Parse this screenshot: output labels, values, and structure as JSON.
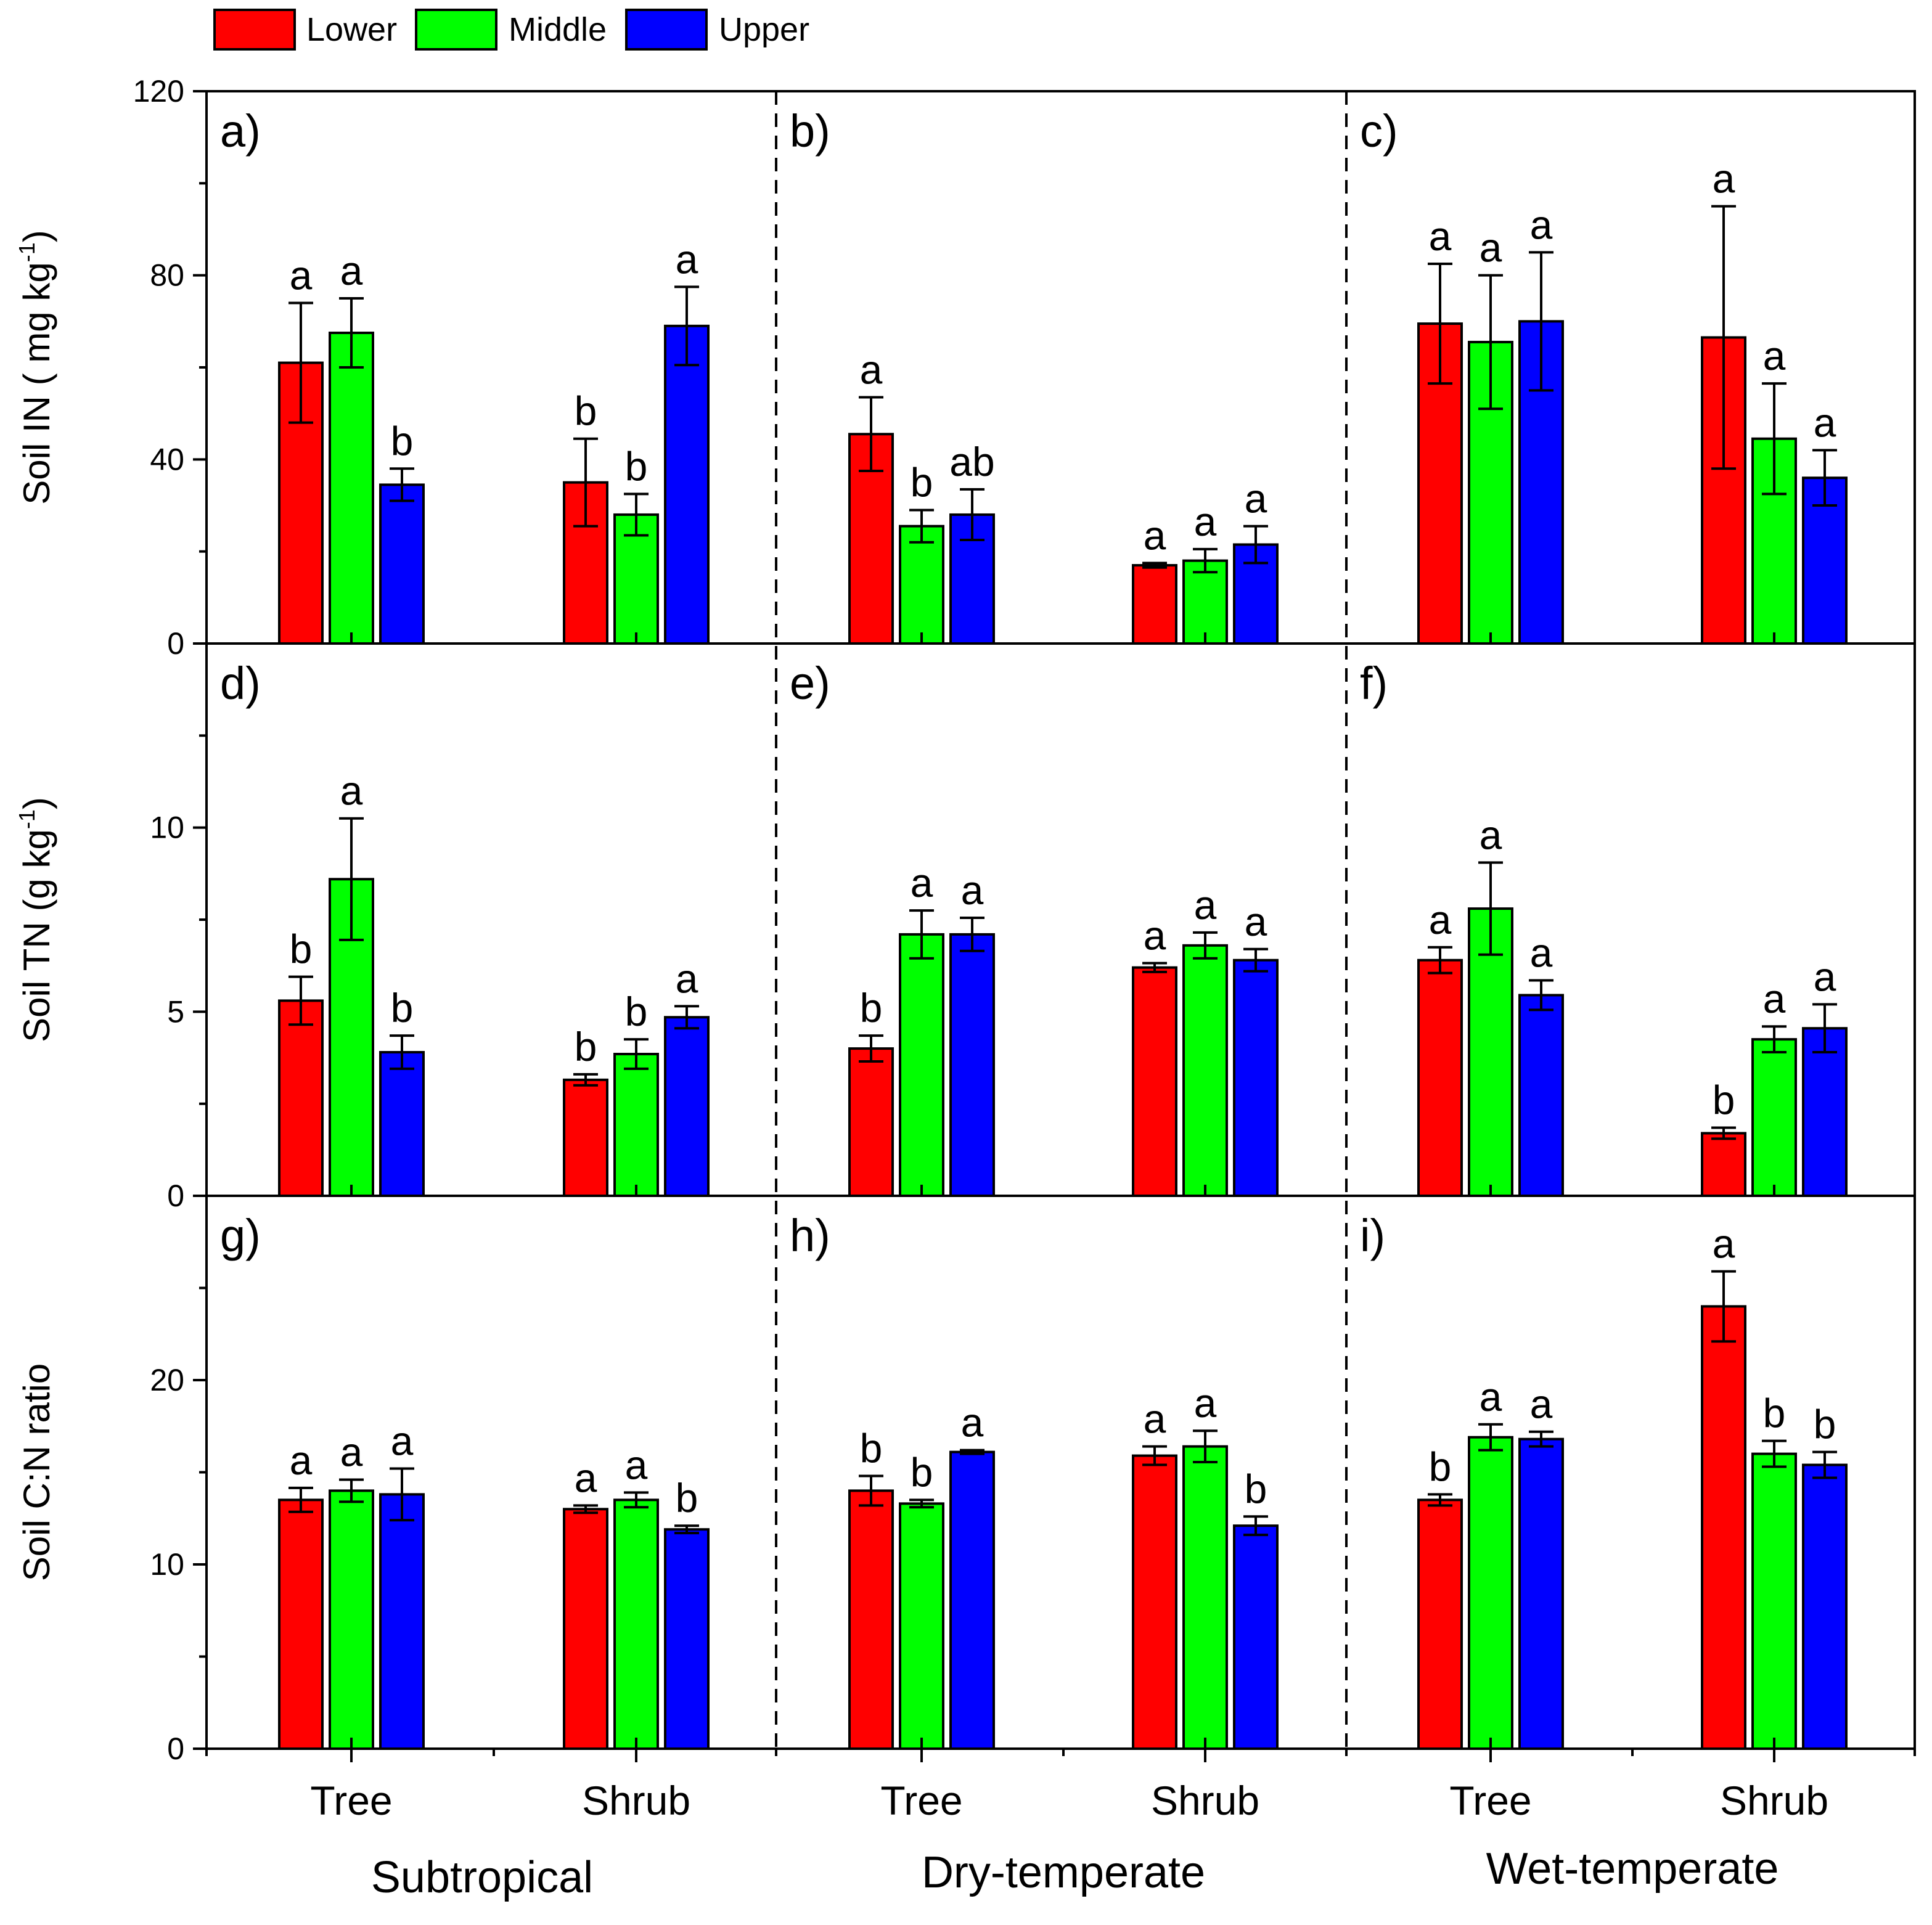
{
  "chart_data": {
    "type": "bar",
    "layout": "3x3 panel grid, climate zones as columns, soil variables as rows",
    "legend": [
      {
        "name": "Lower",
        "color": "#ff0000"
      },
      {
        "name": "Middle",
        "color": "#00ff00"
      },
      {
        "name": "Upper",
        "color": "#0000ff"
      }
    ],
    "climates": [
      "Subtropical",
      "Dry-temperate",
      "Wet-temperate"
    ],
    "groups": [
      "Tree",
      "Shrub"
    ],
    "rows": [
      {
        "ylabel_main": "Soil IN ( mg kg",
        "ylabel_sup": "-1",
        "ylabel_end": ")",
        "ylim": [
          0,
          120
        ],
        "major_ticks": [
          0,
          40,
          80,
          120
        ],
        "minor_step": 20,
        "tick_labels": [
          "0",
          "40",
          "80",
          "120"
        ],
        "panels": [
          {
            "label": "a)",
            "bars": [
              {
                "mean": 61,
                "err": 13,
                "sig": "a"
              },
              {
                "mean": 67.5,
                "err": 7.5,
                "sig": "a"
              },
              {
                "mean": 34.5,
                "err": 3.5,
                "sig": "b"
              },
              {
                "mean": 35,
                "err": 9.5,
                "sig": "b"
              },
              {
                "mean": 28,
                "err": 4.5,
                "sig": "b"
              },
              {
                "mean": 69,
                "err": 8.5,
                "sig": "a"
              }
            ]
          },
          {
            "label": "b)",
            "bars": [
              {
                "mean": 45.5,
                "err": 8,
                "sig": "a"
              },
              {
                "mean": 25.5,
                "err": 3.5,
                "sig": "b"
              },
              {
                "mean": 28,
                "err": 5.5,
                "sig": "ab"
              },
              {
                "mean": 17,
                "err": 0.5,
                "sig": "a"
              },
              {
                "mean": 18,
                "err": 2.5,
                "sig": "a"
              },
              {
                "mean": 21.5,
                "err": 4,
                "sig": "a"
              }
            ]
          },
          {
            "label": "c)",
            "bars": [
              {
                "mean": 69.5,
                "err": 13,
                "sig": "a"
              },
              {
                "mean": 65.5,
                "err": 14.5,
                "sig": "a"
              },
              {
                "mean": 70,
                "err": 15,
                "sig": "a"
              },
              {
                "mean": 66.5,
                "err": 28.5,
                "sig": "a"
              },
              {
                "mean": 44.5,
                "err": 12,
                "sig": "a"
              },
              {
                "mean": 36,
                "err": 6,
                "sig": "a"
              }
            ]
          }
        ]
      },
      {
        "ylabel_main": "Soil TN (g kg",
        "ylabel_sup": "-1",
        "ylabel_end": ")",
        "ylim": [
          0,
          15
        ],
        "major_ticks": [
          0,
          5,
          10
        ],
        "minor_step": 2.5,
        "tick_labels": [
          "0",
          "5",
          "10"
        ],
        "panels": [
          {
            "label": "d)",
            "bars": [
              {
                "mean": 5.3,
                "err": 0.65,
                "sig": "b"
              },
              {
                "mean": 8.6,
                "err": 1.65,
                "sig": "a"
              },
              {
                "mean": 3.9,
                "err": 0.45,
                "sig": "b"
              },
              {
                "mean": 3.15,
                "err": 0.15,
                "sig": "b"
              },
              {
                "mean": 3.85,
                "err": 0.4,
                "sig": "b"
              },
              {
                "mean": 4.85,
                "err": 0.3,
                "sig": "a"
              }
            ]
          },
          {
            "label": "e)",
            "bars": [
              {
                "mean": 4.0,
                "err": 0.35,
                "sig": "b"
              },
              {
                "mean": 7.1,
                "err": 0.65,
                "sig": "a"
              },
              {
                "mean": 7.1,
                "err": 0.45,
                "sig": "a"
              },
              {
                "mean": 6.2,
                "err": 0.12,
                "sig": "a"
              },
              {
                "mean": 6.8,
                "err": 0.35,
                "sig": "a"
              },
              {
                "mean": 6.4,
                "err": 0.3,
                "sig": "a"
              }
            ]
          },
          {
            "label": "f)",
            "bars": [
              {
                "mean": 6.4,
                "err": 0.35,
                "sig": "a"
              },
              {
                "mean": 7.8,
                "err": 1.25,
                "sig": "a"
              },
              {
                "mean": 5.45,
                "err": 0.4,
                "sig": "a"
              },
              {
                "mean": 1.7,
                "err": 0.15,
                "sig": "b"
              },
              {
                "mean": 4.25,
                "err": 0.35,
                "sig": "a"
              },
              {
                "mean": 4.55,
                "err": 0.65,
                "sig": "a"
              }
            ]
          }
        ]
      },
      {
        "ylabel_main": "Soil C:N ratio",
        "ylabel_sup": "",
        "ylabel_end": "",
        "ylim": [
          0,
          30
        ],
        "major_ticks": [
          0,
          10,
          20
        ],
        "minor_step": 5,
        "tick_labels": [
          "0",
          "10",
          "20"
        ],
        "panels": [
          {
            "label": "g)",
            "bars": [
              {
                "mean": 13.5,
                "err": 0.65,
                "sig": "a"
              },
              {
                "mean": 14,
                "err": 0.6,
                "sig": "a"
              },
              {
                "mean": 13.8,
                "err": 1.4,
                "sig": "a"
              },
              {
                "mean": 13.0,
                "err": 0.2,
                "sig": "a"
              },
              {
                "mean": 13.5,
                "err": 0.4,
                "sig": "a"
              },
              {
                "mean": 11.9,
                "err": 0.2,
                "sig": "b"
              }
            ]
          },
          {
            "label": "h)",
            "bars": [
              {
                "mean": 14,
                "err": 0.8,
                "sig": "b"
              },
              {
                "mean": 13.3,
                "err": 0.2,
                "sig": "b"
              },
              {
                "mean": 16.1,
                "err": 0.1,
                "sig": "a"
              },
              {
                "mean": 15.9,
                "err": 0.5,
                "sig": "a"
              },
              {
                "mean": 16.4,
                "err": 0.85,
                "sig": "a"
              },
              {
                "mean": 12.1,
                "err": 0.5,
                "sig": "b"
              }
            ]
          },
          {
            "label": "i)",
            "bars": [
              {
                "mean": 13.5,
                "err": 0.3,
                "sig": "b"
              },
              {
                "mean": 16.9,
                "err": 0.7,
                "sig": "a"
              },
              {
                "mean": 16.8,
                "err": 0.4,
                "sig": "a"
              },
              {
                "mean": 24.0,
                "err": 1.9,
                "sig": "a"
              },
              {
                "mean": 16.0,
                "err": 0.7,
                "sig": "b"
              },
              {
                "mean": 15.4,
                "err": 0.7,
                "sig": "b"
              }
            ]
          }
        ]
      }
    ]
  }
}
